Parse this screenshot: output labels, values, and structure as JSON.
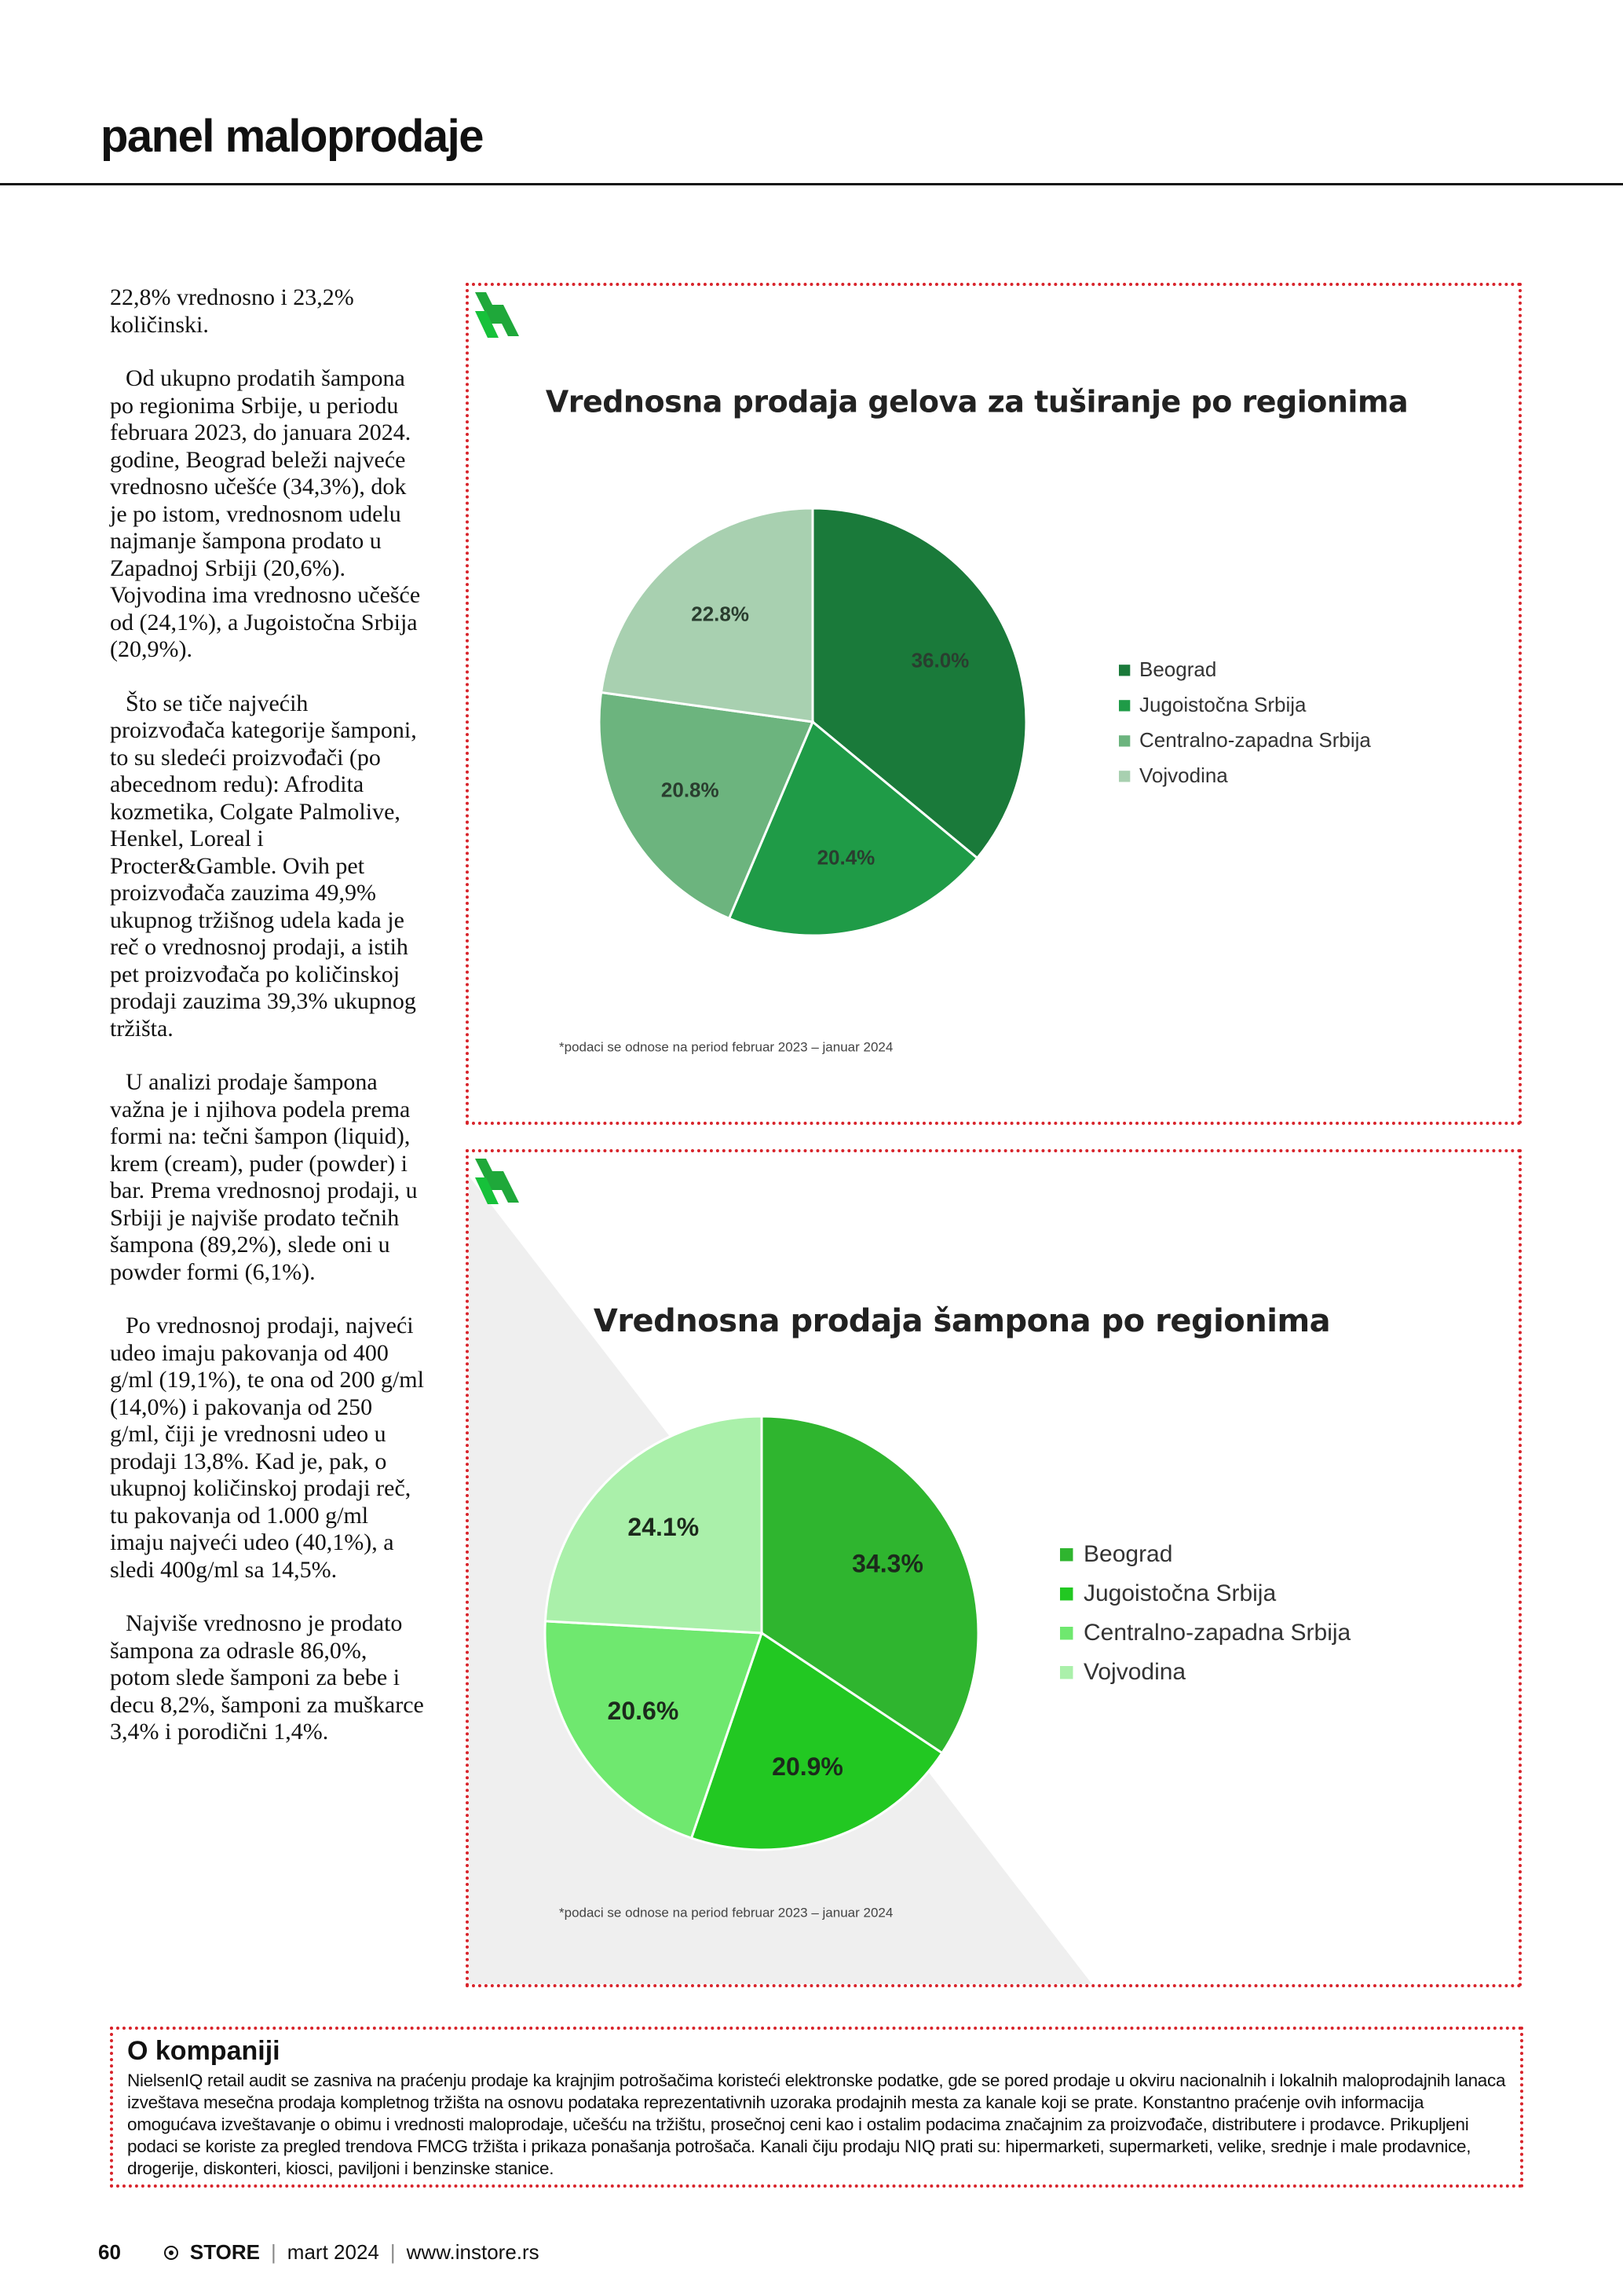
{
  "header": {
    "title": "panel maloprodaje"
  },
  "article": {
    "paragraphs": [
      "22,8% vrednosno i 23,2% količinski.",
      "Od ukupno prodatih šampona po regionima Srbije, u periodu februara 2023, do januara 2024. godine, Beograd beleži najveće vrednosno učešće (34,3%), dok je po istom, vrednosnom udelu najmanje šampona prodato u Zapadnoj Srbiji (20,6%). Vojvodina ima vrednosno učešće od (24,1%), a Jugoistočna Srbija (20,9%).",
      "Što se tiče najvećih proizvođača kategorije šamponi, to su sledeći proizvođači (po abecednom redu): Afrodita kozmetika, Colgate Palmolive, Henkel, Loreal i Procter&Gamble. Ovih pet proizvođača zauzima 49,9% ukupnog tržišnog udela kada je reč o vrednosnoj prodaji, a istih pet proizvođača po količinskoj prodaji zauzima 39,3% ukupnog tržišta.",
      "U analizi prodaje šampona važna je i njihova podela prema formi na: tečni šampon (liquid), krem (cream), puder (powder) i bar. Prema vrednosnoj prodaji, u Srbiji je najviše prodato tečnih šampona (89,2%), slede oni u powder formi (6,1%).",
      "Po vrednosnoj prodaji, najveći udeo imaju pakovanja od 400 g/ml (19,1%), te ona od 200 g/ml (14,0%) i pakovanja od 250 g/ml, čiji je vrednosni udeo u prodaji 13,8%. Kad je, pak, o ukupnoj količinskoj prodaji reč, tu pakovanja od 1.000 g/ml imaju najveći udeo (40,1%), a sledi 400g/ml sa 14,5%.",
      "Najviše vrednosno je prodato šampona za odrasle 86,0%, potom slede šamponi za bebe i decu 8,2%, šamponi za muškarce 3,4% i porodični 1,4%."
    ]
  },
  "chart_data": [
    {
      "type": "pie",
      "title": "Vrednosna prodaja gelova za tuširanje po regionima",
      "categories": [
        "Beograd",
        "Jugoistočna Srbija",
        "Centralno-zapadna Srbija",
        "Vojvodina"
      ],
      "values": [
        36.0,
        20.4,
        20.8,
        22.8
      ],
      "value_labels": [
        "36.0%",
        "20.4%",
        "20.8%",
        "22.8%"
      ],
      "colors": [
        "#1a7a3a",
        "#1f9b47",
        "#6cb47e",
        "#a8d0b0"
      ],
      "note": "*podaci se odnose na period februar 2023 – januar 2024"
    },
    {
      "type": "pie",
      "title": "Vrednosna prodaja šampona po regionima",
      "categories": [
        "Beograd",
        "Jugoistočna Srbija",
        "Centralno-zapadna Srbija",
        "Vojvodina"
      ],
      "values": [
        34.3,
        20.9,
        20.6,
        24.1
      ],
      "value_labels": [
        "34.3%",
        "20.9%",
        "20.6%",
        "24.1%"
      ],
      "colors": [
        "#2fb52f",
        "#22c822",
        "#6fe86f",
        "#aaf0aa"
      ],
      "note": "*podaci se odnose na period februar 2023 – januar 2024"
    }
  ],
  "box": {
    "title": "O kompaniji",
    "text": "NielsenIQ retail audit se zasniva na praćenju prodaje ka krajnjim potrošačima koristeći elektronske podatke, gde se pored prodaje u okviru nacionalnih i lokalnih maloprodajnih lanaca izveštava mesečna prodaja kompletnog tržišta na osnovu podataka reprezentativnih uzoraka prodajnih mesta za kanale koji se prate. Konstantno praćenje ovih informacija omogućava izveštavanje o obimu i vrednosti maloprodaje, učešću na tržištu, prosečnoj ceni kao i ostalim podacima značajnim za proizvođače, distributere i prodavce. Prikupljeni podaci se koriste za pregled trendova FMCG tržišta i prikaza ponašanja potrošača. Kanali čiju prodaju NIQ prati su: hipermarketi, supermarketi, velike, srednje i male prodavnice, drogerije, diskonteri, kiosci, paviljoni i benzinske stanice."
  },
  "footer": {
    "page": "60",
    "brand": "STORE",
    "issue": "mart 2024",
    "url": "www.instore.rs"
  }
}
